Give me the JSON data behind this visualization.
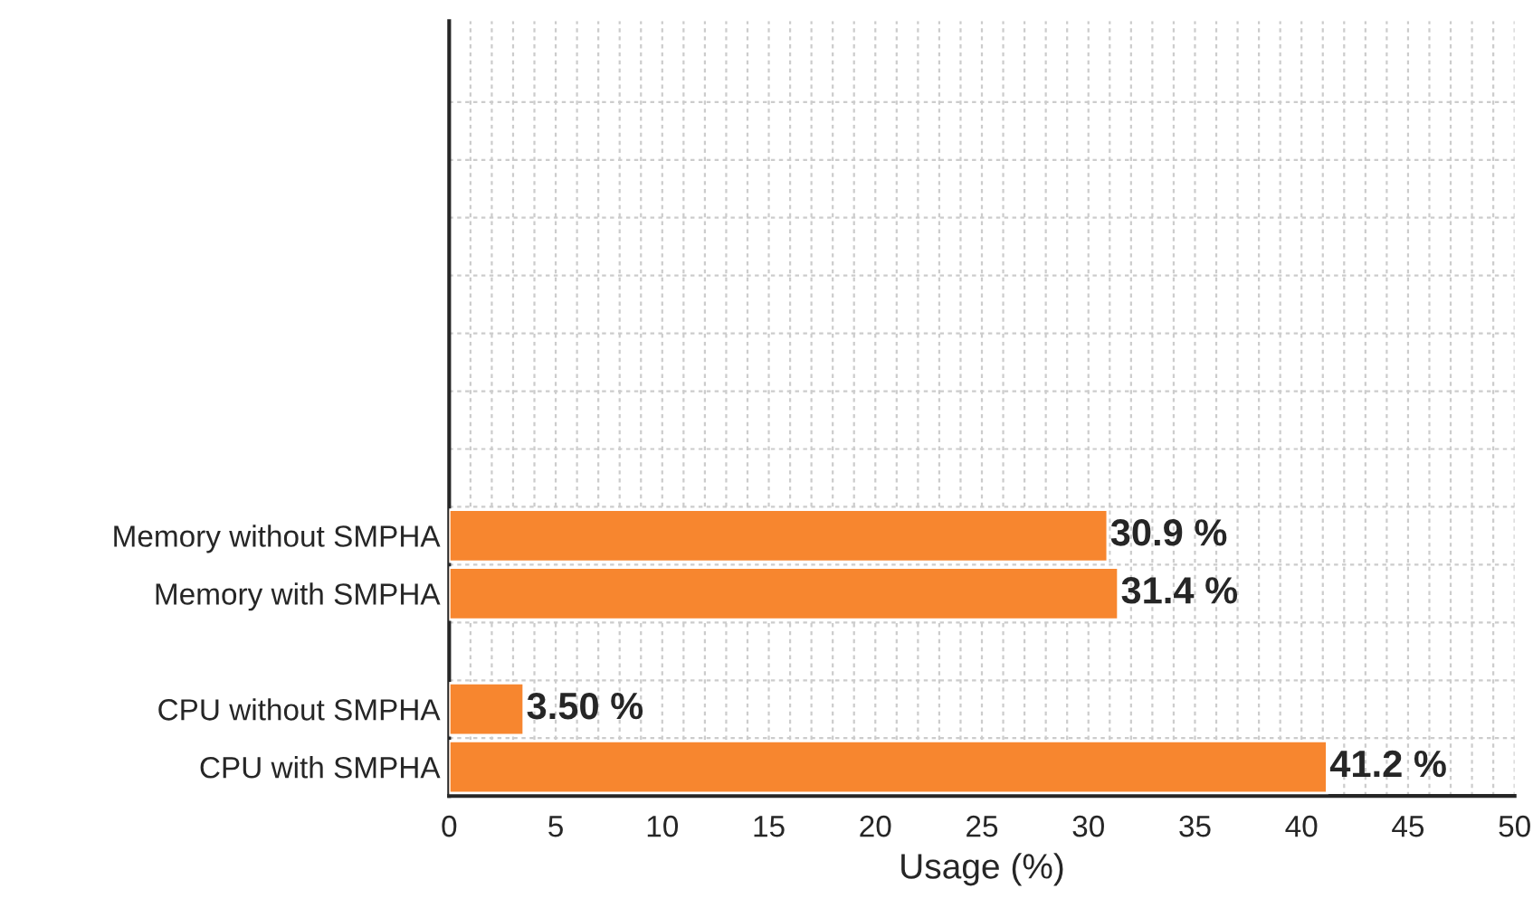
{
  "chart_data": {
    "type": "bar",
    "orientation": "horizontal",
    "xlabel": "Usage (%)",
    "categories": [
      null,
      null,
      null,
      null,
      null,
      null,
      null,
      null,
      "Memory without SMPHA",
      "Memory with SMPHA",
      null,
      "CPU without SMPHA",
      "CPU with SMPHA"
    ],
    "values": [
      null,
      null,
      null,
      null,
      null,
      null,
      null,
      null,
      30.9,
      31.4,
      null,
      3.5,
      41.2
    ],
    "value_labels": [
      null,
      null,
      null,
      null,
      null,
      null,
      null,
      null,
      "30.9 %",
      "31.4 %",
      null,
      "3.50 %",
      "41.2 %"
    ],
    "color": "#f7862f",
    "xlim": [
      0,
      50
    ],
    "xticks": [
      0,
      5,
      10,
      15,
      20,
      25,
      30,
      35,
      40,
      45,
      50
    ],
    "grid": true
  }
}
